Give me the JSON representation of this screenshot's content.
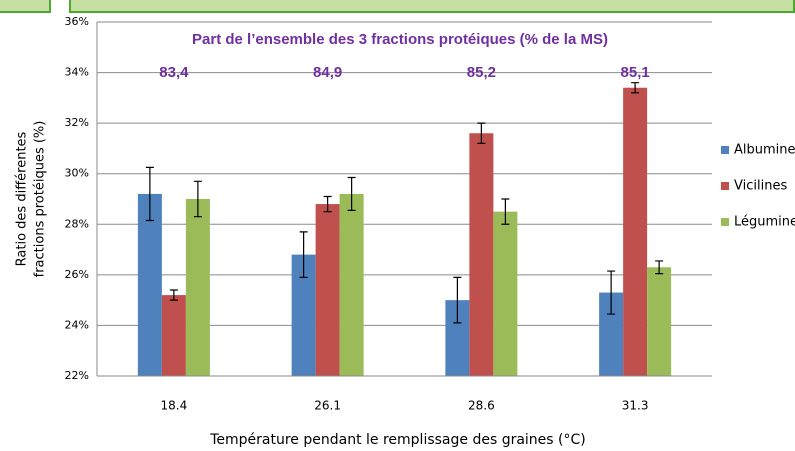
{
  "chart_data": {
    "type": "bar",
    "title": "Part  de l’ensemble des 3 fractions protéiques (% de la MS)",
    "annotation_values": [
      83.4,
      84.9,
      85.2,
      85.1
    ],
    "annotation_value_labels": [
      "83,4",
      "84,9",
      "85,2",
      "85,1"
    ],
    "x_label": "Température pendant le remplissage des graines (°C)",
    "y_label": [
      "Ratio des différentes",
      "fractions protéiques (%)"
    ],
    "categories": [
      "18.4",
      "26.1",
      "28.6",
      "31.3"
    ],
    "series": [
      {
        "name": "Albumines",
        "color": "#4f81bd",
        "values": [
          29.2,
          26.8,
          25.0,
          25.3
        ],
        "errors": [
          1.05,
          0.9,
          0.9,
          0.85
        ]
      },
      {
        "name": "Vicilines",
        "color": "#c0504d",
        "values": [
          25.2,
          28.8,
          31.6,
          33.4
        ],
        "errors": [
          0.2,
          0.3,
          0.4,
          0.2
        ]
      },
      {
        "name": "Légumines",
        "color": "#9bbb59",
        "values": [
          29.0,
          29.2,
          28.5,
          26.3
        ],
        "errors": [
          0.7,
          0.65,
          0.5,
          0.25
        ]
      }
    ],
    "ylim": [
      22,
      36
    ],
    "yticks": [
      {
        "value": 22,
        "label": "22%"
      },
      {
        "value": 24,
        "label": "24%"
      },
      {
        "value": 26,
        "label": "26%"
      },
      {
        "value": 28,
        "label": "28%"
      },
      {
        "value": 30,
        "label": "30%"
      },
      {
        "value": 32,
        "label": "32%"
      },
      {
        "value": 34,
        "label": "34%"
      },
      {
        "value": 36,
        "label": "36%"
      }
    ],
    "grid": true,
    "legend": "right"
  }
}
